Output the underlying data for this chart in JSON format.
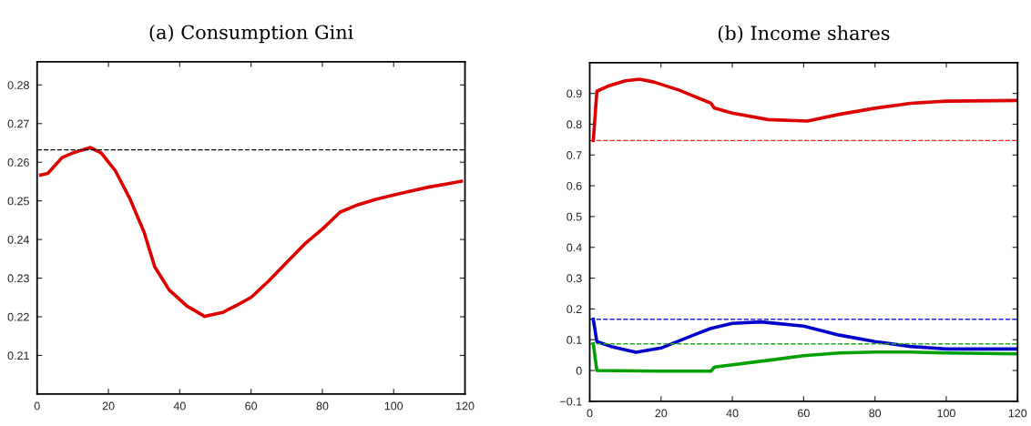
{
  "chart_data": [
    {
      "type": "line",
      "title": "(a) Consumption Gini",
      "xlim": [
        0,
        120
      ],
      "ylim": [
        0.2,
        0.286
      ],
      "xticks": [
        0,
        20,
        40,
        60,
        80,
        100,
        120
      ],
      "yticks": [
        0.21,
        0.22,
        0.23,
        0.24,
        0.25,
        0.26,
        0.27,
        0.28
      ],
      "grid": false,
      "legend": false,
      "line_style": "solid",
      "ref_lines": [
        {
          "axis": "y",
          "value": 0.2632,
          "color": "#000000",
          "line_style": "dashed"
        }
      ],
      "series": [
        {
          "color": "#dd0000",
          "x": [
            1,
            3,
            7,
            10,
            15,
            18,
            22,
            26,
            30,
            33,
            37,
            42,
            47,
            52,
            56,
            60,
            65,
            70,
            75,
            80,
            85,
            90,
            95,
            100,
            105,
            110,
            115,
            119
          ],
          "values": [
            0.2567,
            0.2571,
            0.2612,
            0.2624,
            0.2638,
            0.2624,
            0.2577,
            0.2506,
            0.2419,
            0.2329,
            0.227,
            0.2228,
            0.2201,
            0.2211,
            0.223,
            0.225,
            0.2293,
            0.2341,
            0.2388,
            0.2427,
            0.2471,
            0.249,
            0.2504,
            0.2515,
            0.2526,
            0.2536,
            0.2544,
            0.2551
          ]
        }
      ]
    },
    {
      "type": "line",
      "title": "(b) Income shares",
      "xlim": [
        0,
        120
      ],
      "ylim": [
        -0.1,
        1.0
      ],
      "xticks": [
        0,
        20,
        40,
        60,
        80,
        100,
        120
      ],
      "yticks": [
        {
          "value": -0.1,
          "label": "−0.1"
        },
        0,
        0.1,
        0.2,
        0.3,
        0.4,
        0.5,
        0.6,
        0.7,
        0.8,
        0.9
      ],
      "grid": false,
      "legend": false,
      "line_style": "solid",
      "ref_lines": [
        {
          "axis": "y",
          "value": 0.747,
          "color": "#ee2222",
          "line_style": "dashed"
        },
        {
          "axis": "y",
          "value": 0.1665,
          "color": "#2222dd",
          "line_style": "dashed"
        },
        {
          "axis": "y",
          "value": 0.0864,
          "color": "#22aa22",
          "line_style": "dashed"
        }
      ],
      "series": [
        {
          "color": "#dd0000",
          "x": [
            1,
            2,
            5,
            10,
            14,
            18,
            25,
            34,
            35,
            40,
            50,
            61,
            70,
            80,
            90,
            100,
            120
          ],
          "values": [
            0.747,
            0.907,
            0.923,
            0.941,
            0.946,
            0.937,
            0.911,
            0.868,
            0.852,
            0.836,
            0.815,
            0.81,
            0.832,
            0.852,
            0.868,
            0.875,
            0.877
          ]
        },
        {
          "color": "#0000cc",
          "x": [
            1,
            2,
            6,
            13,
            20,
            28,
            34,
            40,
            48,
            60,
            70,
            80,
            90,
            100,
            120
          ],
          "values": [
            0.1665,
            0.094,
            0.078,
            0.059,
            0.073,
            0.11,
            0.137,
            0.153,
            0.158,
            0.144,
            0.115,
            0.094,
            0.078,
            0.07,
            0.07
          ]
        },
        {
          "color": "#00a000",
          "x": [
            1,
            2,
            20,
            34,
            35,
            50,
            60,
            70,
            80,
            90,
            100,
            120
          ],
          "values": [
            0.0864,
            0.0,
            -0.002,
            -0.002,
            0.011,
            0.033,
            0.048,
            0.057,
            0.06,
            0.06,
            0.057,
            0.054
          ]
        }
      ]
    }
  ]
}
